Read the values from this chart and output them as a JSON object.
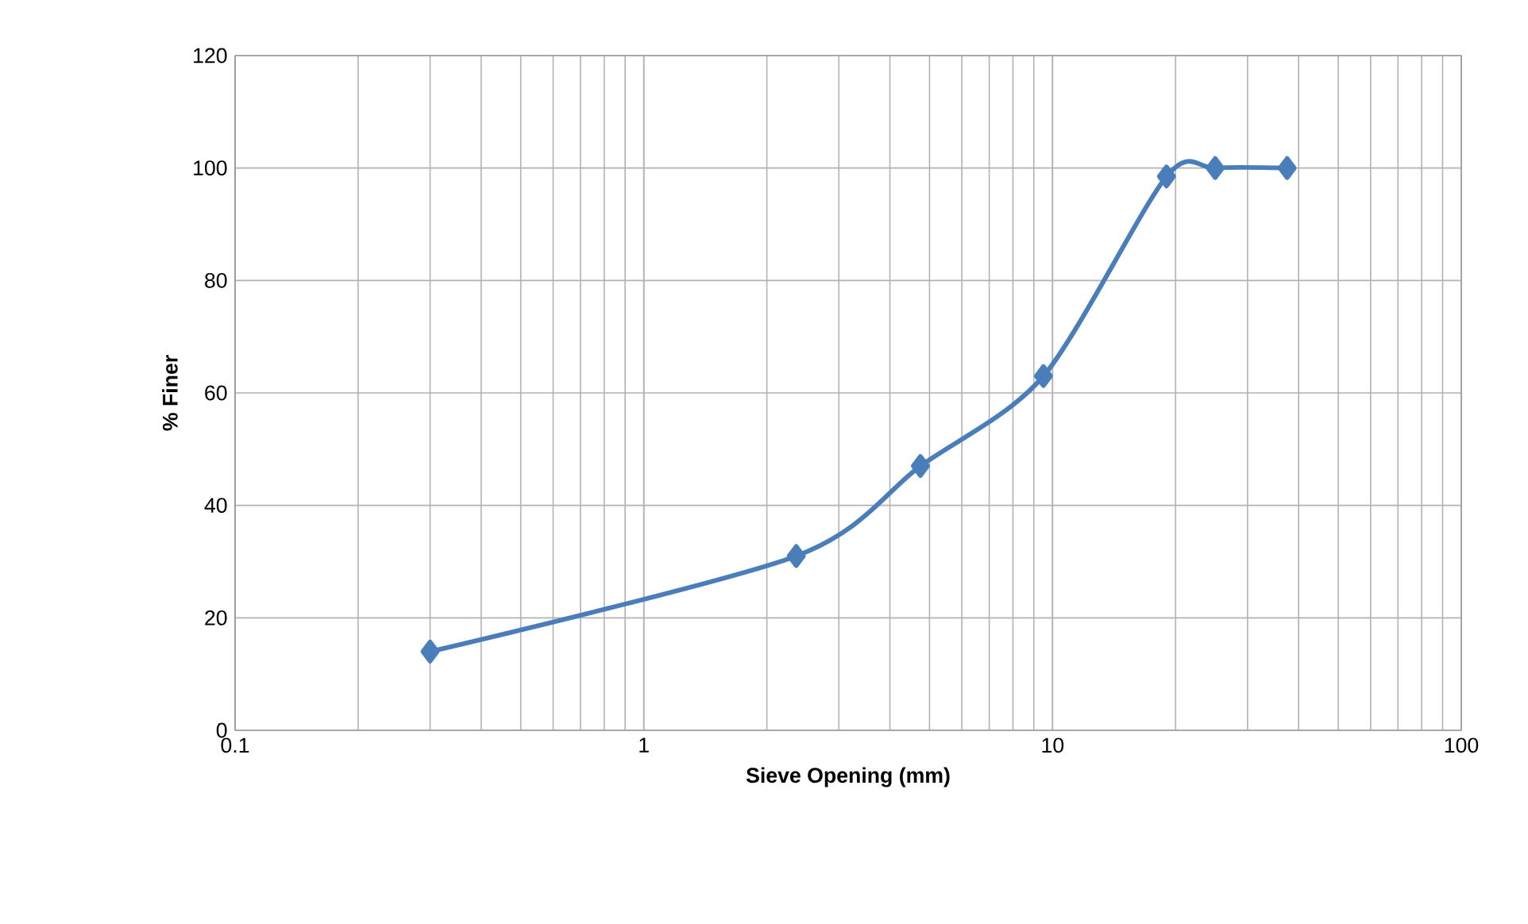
{
  "chart_data": {
    "type": "line",
    "xlabel": "Sieve Opening (mm)",
    "ylabel": "% Finer",
    "x": [
      0.3,
      2.36,
      4.75,
      9.5,
      19,
      25,
      37.5
    ],
    "series": [
      {
        "color": "#4a7ebb",
        "values": [
          14,
          31,
          47,
          63,
          98.5,
          100,
          100
        ]
      }
    ],
    "log": "x",
    "xlim": [
      0.1,
      100
    ],
    "ylim": [
      0,
      120
    ],
    "xticks": [
      0.1,
      1,
      10,
      100
    ],
    "yticks": [
      0,
      20,
      40,
      60,
      80,
      100,
      120
    ],
    "grid": true,
    "marker": "diamond",
    "line_style": "solid"
  }
}
